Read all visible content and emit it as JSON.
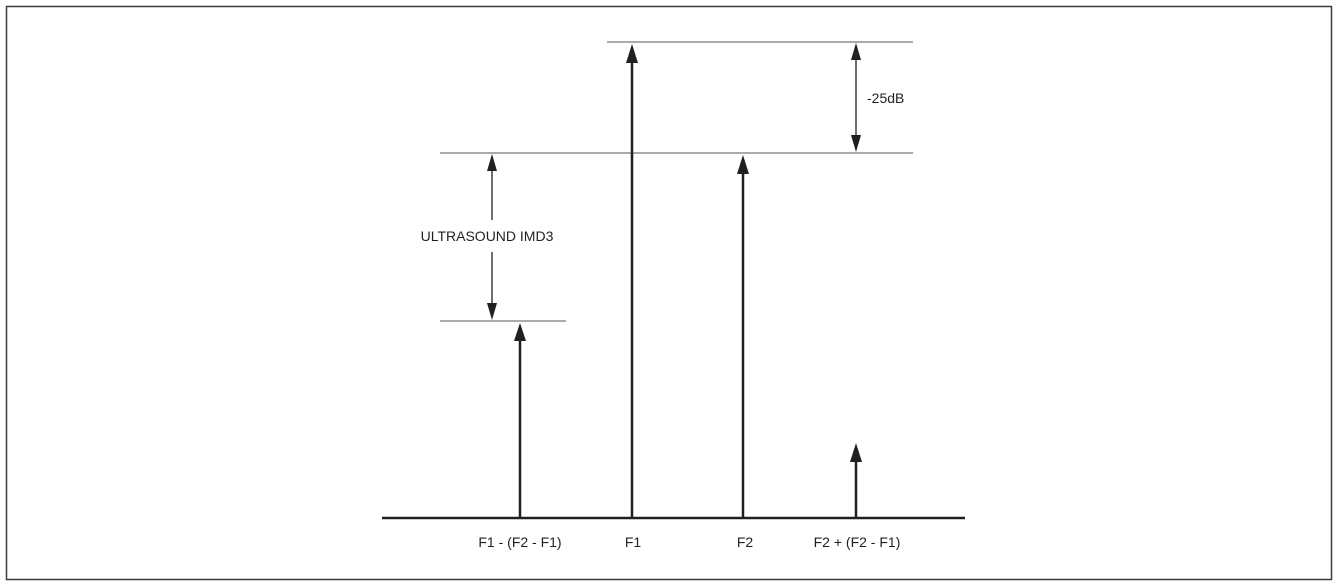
{
  "diagram": {
    "labels": {
      "ultrasound_imd3": "ULTRASOUND IMD3",
      "minus_25db": "-25dB"
    },
    "axis_labels": {
      "f1_minus": "F1 - (F2 - F1)",
      "f1": "F1",
      "f2": "F2",
      "f2_plus": "F2 + (F2 - F1)"
    },
    "colors": {
      "ink": "#231f20",
      "thin": "#555555",
      "frame": "#3c3c3c"
    }
  }
}
